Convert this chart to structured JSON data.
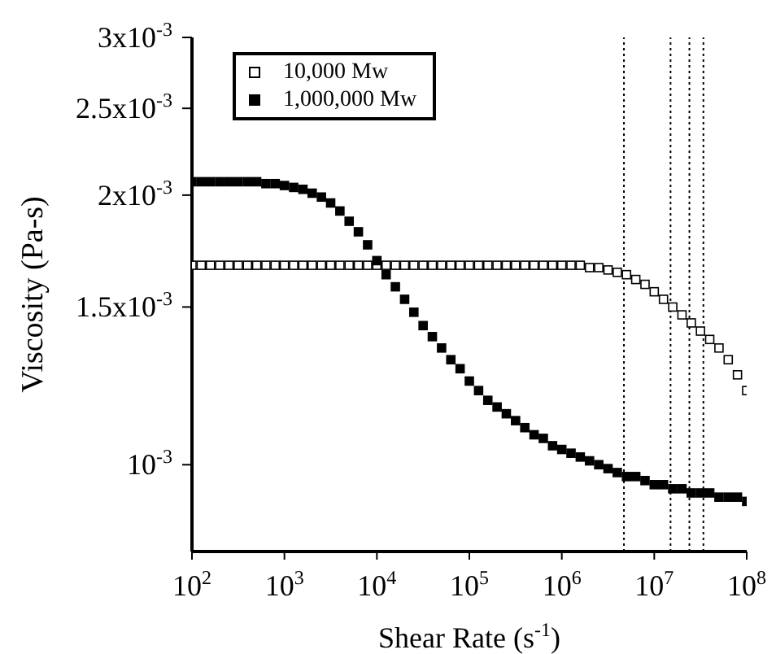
{
  "chart_data": {
    "type": "scatter",
    "xlabel": "Shear Rate (s$^{-1}$)",
    "ylabel": "Viscosity (Pa-s)",
    "log": "xy",
    "legend": "top left",
    "marker": "square",
    "x": [
      100,
      125.9,
      158.5,
      199.5,
      251.2,
      316.2,
      398.1,
      501.2,
      631,
      794.3,
      1000,
      1259,
      1585,
      1995,
      2512,
      3162,
      3981,
      5012,
      6310,
      7943,
      10000,
      12589,
      15849,
      19953,
      25119,
      31623,
      39811,
      50119,
      63096,
      79433,
      100000,
      125893,
      158489,
      199526,
      251189,
      316228,
      398107,
      501187,
      630957,
      794328,
      1000000,
      1258925,
      1584893,
      1995262,
      2511886,
      3162278,
      3981072,
      5011872,
      6309573,
      7943282,
      10000000,
      12589254,
      15848932,
      19952623,
      25118864,
      31622777,
      39810717,
      50118723,
      63095734,
      79432823,
      100000000
    ],
    "xlim": [
      100,
      100000000
    ],
    "xticks": [
      {
        "value": 100,
        "label": "10$^{2}$"
      },
      {
        "value": 1000,
        "label": "10$^{3}$"
      },
      {
        "value": 10000,
        "label": "10$^{4}$"
      },
      {
        "value": 100000,
        "label": "10$^{5}$"
      },
      {
        "value": 1000000,
        "label": "10$^{6}$"
      },
      {
        "value": 10000000,
        "label": "10$^{7}$"
      },
      {
        "value": 100000000,
        "label": "10$^{8}$"
      }
    ],
    "ylim": [
      0.0008,
      0.003
    ],
    "yticks": [
      {
        "value": 0.001,
        "label": "10$^{-3}$"
      },
      {
        "value": 0.0015,
        "label": "1.5x10$^{-3}$"
      },
      {
        "value": 0.002,
        "label": "2x10$^{-3}$"
      },
      {
        "value": 0.0025,
        "label": "2.5x10$^{-3}$"
      },
      {
        "value": 0.003,
        "label": "3x10$^{-3}$"
      }
    ],
    "series": [
      {
        "name": "10,000 Mw",
        "color": "#000000",
        "values": [
          0.00167,
          0.00167,
          0.00167,
          0.00167,
          0.00167,
          0.00167,
          0.00167,
          0.00167,
          0.00167,
          0.00167,
          0.00167,
          0.00167,
          0.00167,
          0.00167,
          0.00167,
          0.00167,
          0.00167,
          0.00167,
          0.00167,
          0.00167,
          0.00167,
          0.00167,
          0.00167,
          0.00167,
          0.00167,
          0.00167,
          0.00167,
          0.00167,
          0.00167,
          0.00167,
          0.00167,
          0.00167,
          0.00167,
          0.00167,
          0.00167,
          0.00167,
          0.00167,
          0.00167,
          0.00167,
          0.00167,
          0.00167,
          0.00167,
          0.00167,
          0.00166,
          0.00166,
          0.00165,
          0.00164,
          0.00163,
          0.00161,
          0.00159,
          0.00156,
          0.00153,
          0.0015,
          0.00147,
          0.00144,
          0.00141,
          0.00138,
          0.00135,
          0.00131,
          0.00126,
          0.00121
        ]
      },
      {
        "name": "1,000,000 Mw",
        "color": "#000000",
        "values": [
          0.00207,
          0.00207,
          0.00207,
          0.00207,
          0.00207,
          0.00207,
          0.00207,
          0.00207,
          0.00206,
          0.00206,
          0.00205,
          0.00204,
          0.00203,
          0.00201,
          0.00199,
          0.00196,
          0.00192,
          0.00187,
          0.00182,
          0.00176,
          0.00169,
          0.00163,
          0.00158,
          0.00153,
          0.00148,
          0.00143,
          0.00139,
          0.00135,
          0.00131,
          0.00128,
          0.00124,
          0.00121,
          0.00118,
          0.00116,
          0.00114,
          0.00112,
          0.0011,
          0.00108,
          0.00107,
          0.00105,
          0.00104,
          0.00103,
          0.00102,
          0.00101,
          0.001,
          0.00099,
          0.00098,
          0.00097,
          0.00097,
          0.00096,
          0.00095,
          0.00095,
          0.00094,
          0.00094,
          0.00093,
          0.00093,
          0.00093,
          0.00092,
          0.00092,
          0.00092,
          0.00091
        ]
      }
    ],
    "ref_lines": [
      {
        "axis": "x",
        "value": 4700000,
        "color": "#000000",
        "line_style": "dotted"
      },
      {
        "axis": "x",
        "value": 15000000,
        "color": "#000000",
        "line_style": "dotted"
      },
      {
        "axis": "x",
        "value": 24000000,
        "color": "#000000",
        "line_style": "dotted"
      },
      {
        "axis": "x",
        "value": 34000000,
        "color": "#000000",
        "line_style": "dotted"
      }
    ]
  }
}
